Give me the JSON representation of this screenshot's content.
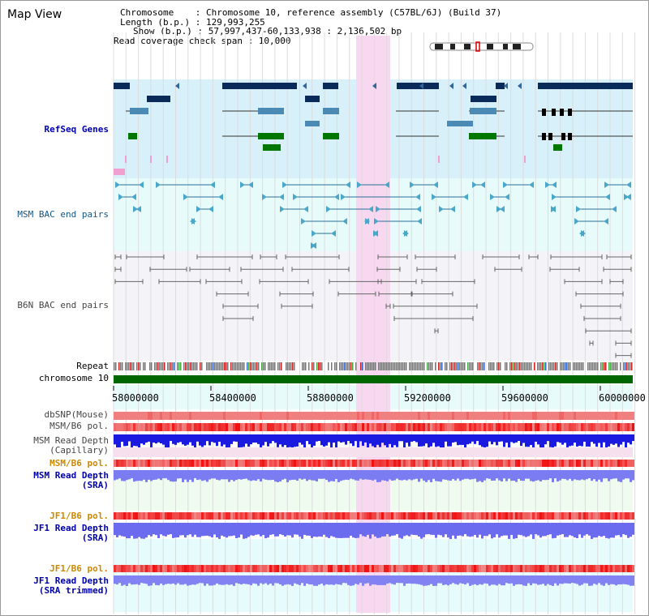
{
  "view_title": "Map View",
  "info": {
    "line1": "Chromosome    : Chromosome 10, reference assembly (C57BL/6J) (Build 37)",
    "line2": "Length (b.p.) : 129,993,255",
    "line3": "Show (b.p.) : 57,997,437-60,133,938 : 2,136,502 bp",
    "line4": "Read coverage check span : 10,000"
  },
  "tracks": {
    "refseq": "RefSeq Genes",
    "msm_bac": "MSM BAC end pairs",
    "b6n_bac": "B6N BAC end pairs",
    "repeat": "Repeat",
    "chromosome": "chromosome 10",
    "dbsnp": "dbSNP(Mouse)",
    "msm_b6_pol": "MSM/B6 pol.",
    "msm_depth_cap_1": "MSM Read Depth",
    "msm_depth_cap_2": "(Capillary)",
    "msm_b6_pol_2": "MSM/B6 pol.",
    "msm_depth_sra_1": "MSM Read Depth",
    "msm_depth_sra_2": "(SRA)",
    "jf1_b6_pol": "JF1/B6 pol.",
    "jf1_depth_sra_1": "JF1 Read Depth",
    "jf1_depth_sra_2": "(SRA)",
    "jf1_b6_pol_2": "JF1/B6 pol.",
    "jf1_depth_trim_1": "JF1 Read Depth",
    "jf1_depth_trim_2": "(SRA trimmed)"
  },
  "axis_ticks": [
    "58000000",
    "58400000",
    "58800000",
    "59200000",
    "59600000",
    "60000000"
  ],
  "colors": {
    "refseq_label": "#0000aa",
    "msm_bac_label": "#115588",
    "b6n_bac_label": "#555555",
    "pol_label": "#cc8800",
    "depth_label": "#0000aa",
    "highlight": "#f8d8f0",
    "chromosome_bar": "#006600"
  }
}
